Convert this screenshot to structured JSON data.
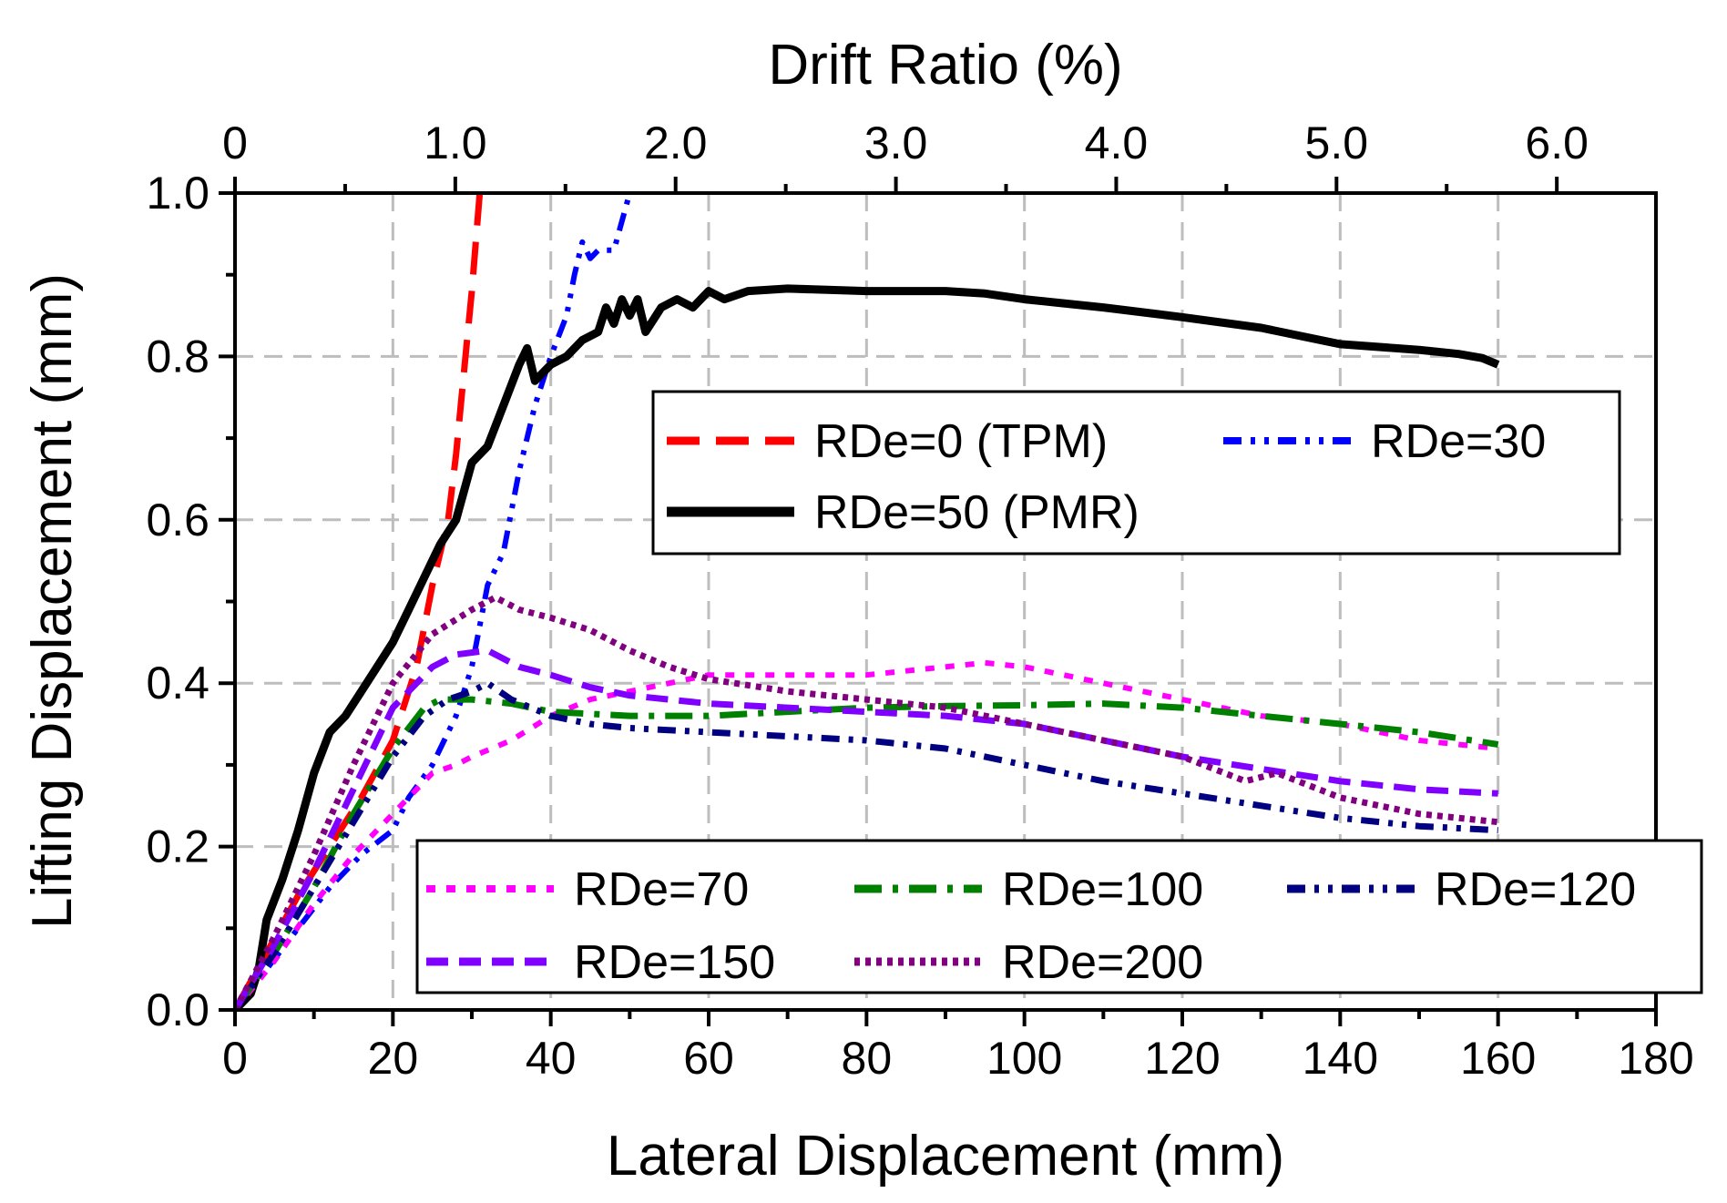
{
  "chart_data": {
    "type": "line",
    "xlabel": "Lateral Displacement (mm)",
    "ylabel": "Lifting Displacement (mm)",
    "x2label": "Drift Ratio (%)",
    "xlim": [
      0,
      180
    ],
    "ylim": [
      0,
      1.0
    ],
    "x2lim": [
      0,
      6.45
    ],
    "xticks": [
      0,
      20,
      40,
      60,
      80,
      100,
      120,
      140,
      160,
      180
    ],
    "xtick_labels": [
      "0",
      "20",
      "40",
      "60",
      "80",
      "100",
      "120",
      "140",
      "160",
      "180"
    ],
    "yticks": [
      0,
      0.2,
      0.4,
      0.6,
      0.8,
      1.0
    ],
    "ytick_labels": [
      "0.0",
      "0.2",
      "0.4",
      "0.6",
      "0.8",
      "1.0"
    ],
    "x2ticks": [
      0,
      1,
      2,
      3,
      4,
      5,
      6
    ],
    "x2tick_labels": [
      "0",
      "1.0",
      "2.0",
      "3.0",
      "4.0",
      "5.0",
      "6.0"
    ],
    "grid": true,
    "series": [
      {
        "name": "RDe=0 (TPM)",
        "color": "#ff0000",
        "dash": "long-dash",
        "width": 7,
        "points": [
          [
            0,
            0
          ],
          [
            4,
            0.07
          ],
          [
            8,
            0.14
          ],
          [
            12,
            0.2
          ],
          [
            16,
            0.26
          ],
          [
            20,
            0.33
          ],
          [
            23,
            0.42
          ],
          [
            25,
            0.52
          ],
          [
            27,
            0.6
          ],
          [
            28,
            0.68
          ],
          [
            29,
            0.78
          ],
          [
            30,
            0.88
          ],
          [
            31,
            1.0
          ]
        ]
      },
      {
        "name": "RDe=30",
        "color": "#0000ff",
        "dash": "dash-dot-dot",
        "width": 6,
        "points": [
          [
            0,
            0
          ],
          [
            4,
            0.05
          ],
          [
            8,
            0.1
          ],
          [
            12,
            0.15
          ],
          [
            16,
            0.19
          ],
          [
            20,
            0.22
          ],
          [
            22,
            0.26
          ],
          [
            25,
            0.3
          ],
          [
            28,
            0.36
          ],
          [
            30,
            0.42
          ],
          [
            32,
            0.52
          ],
          [
            34,
            0.56
          ],
          [
            36,
            0.66
          ],
          [
            38,
            0.74
          ],
          [
            40,
            0.8
          ],
          [
            42,
            0.85
          ],
          [
            43,
            0.9
          ],
          [
            44,
            0.94
          ],
          [
            45,
            0.92
          ],
          [
            46,
            0.93
          ],
          [
            48,
            0.93
          ],
          [
            50,
            1.0
          ]
        ]
      },
      {
        "name": "RDe=50 (PMR)",
        "color": "#000000",
        "dash": "solid",
        "width": 9,
        "points": [
          [
            0,
            0
          ],
          [
            2,
            0.02
          ],
          [
            3,
            0.05
          ],
          [
            4,
            0.11
          ],
          [
            6,
            0.16
          ],
          [
            8,
            0.22
          ],
          [
            10,
            0.29
          ],
          [
            12,
            0.34
          ],
          [
            14,
            0.36
          ],
          [
            16,
            0.39
          ],
          [
            18,
            0.42
          ],
          [
            20,
            0.45
          ],
          [
            22,
            0.49
          ],
          [
            24,
            0.53
          ],
          [
            26,
            0.57
          ],
          [
            28,
            0.6
          ],
          [
            30,
            0.67
          ],
          [
            32,
            0.69
          ],
          [
            34,
            0.74
          ],
          [
            36,
            0.79
          ],
          [
            37,
            0.81
          ],
          [
            38,
            0.77
          ],
          [
            40,
            0.79
          ],
          [
            42,
            0.8
          ],
          [
            44,
            0.82
          ],
          [
            46,
            0.83
          ],
          [
            47,
            0.86
          ],
          [
            48,
            0.84
          ],
          [
            49,
            0.87
          ],
          [
            50,
            0.85
          ],
          [
            51,
            0.87
          ],
          [
            52,
            0.83
          ],
          [
            54,
            0.86
          ],
          [
            56,
            0.87
          ],
          [
            58,
            0.86
          ],
          [
            60,
            0.88
          ],
          [
            62,
            0.87
          ],
          [
            65,
            0.88
          ],
          [
            70,
            0.883
          ],
          [
            80,
            0.88
          ],
          [
            90,
            0.88
          ],
          [
            95,
            0.877
          ],
          [
            100,
            0.87
          ],
          [
            105,
            0.865
          ],
          [
            110,
            0.86
          ],
          [
            120,
            0.848
          ],
          [
            130,
            0.835
          ],
          [
            140,
            0.815
          ],
          [
            150,
            0.808
          ],
          [
            155,
            0.803
          ],
          [
            158,
            0.798
          ],
          [
            160,
            0.79
          ]
        ]
      },
      {
        "name": "RDe=70",
        "color": "#ff00ff",
        "dash": "short-dot",
        "width": 6,
        "points": [
          [
            0,
            0
          ],
          [
            5,
            0.06
          ],
          [
            10,
            0.13
          ],
          [
            15,
            0.19
          ],
          [
            20,
            0.24
          ],
          [
            25,
            0.29
          ],
          [
            28,
            0.3
          ],
          [
            30,
            0.31
          ],
          [
            35,
            0.33
          ],
          [
            40,
            0.36
          ],
          [
            45,
            0.38
          ],
          [
            50,
            0.39
          ],
          [
            55,
            0.4
          ],
          [
            60,
            0.41
          ],
          [
            70,
            0.41
          ],
          [
            80,
            0.41
          ],
          [
            90,
            0.42
          ],
          [
            95,
            0.425
          ],
          [
            100,
            0.42
          ],
          [
            110,
            0.4
          ],
          [
            120,
            0.38
          ],
          [
            130,
            0.36
          ],
          [
            140,
            0.35
          ],
          [
            150,
            0.33
          ],
          [
            160,
            0.32
          ]
        ]
      },
      {
        "name": "RDe=100",
        "color": "#008000",
        "dash": "long-dash-dot",
        "width": 7,
        "points": [
          [
            0,
            0
          ],
          [
            5,
            0.07
          ],
          [
            10,
            0.15
          ],
          [
            15,
            0.24
          ],
          [
            20,
            0.32
          ],
          [
            24,
            0.37
          ],
          [
            26,
            0.38
          ],
          [
            30,
            0.38
          ],
          [
            35,
            0.375
          ],
          [
            40,
            0.365
          ],
          [
            50,
            0.36
          ],
          [
            60,
            0.36
          ],
          [
            70,
            0.365
          ],
          [
            80,
            0.37
          ],
          [
            90,
            0.372
          ],
          [
            100,
            0.373
          ],
          [
            110,
            0.375
          ],
          [
            120,
            0.37
          ],
          [
            130,
            0.36
          ],
          [
            140,
            0.35
          ],
          [
            150,
            0.34
          ],
          [
            160,
            0.325
          ]
        ]
      },
      {
        "name": "RDe=120",
        "color": "#000080",
        "dash": "dash-dot-dot",
        "width": 7,
        "points": [
          [
            0,
            0
          ],
          [
            5,
            0.07
          ],
          [
            10,
            0.15
          ],
          [
            15,
            0.23
          ],
          [
            20,
            0.31
          ],
          [
            24,
            0.36
          ],
          [
            27,
            0.38
          ],
          [
            30,
            0.39
          ],
          [
            32,
            0.4
          ],
          [
            35,
            0.38
          ],
          [
            40,
            0.36
          ],
          [
            45,
            0.35
          ],
          [
            50,
            0.345
          ],
          [
            60,
            0.34
          ],
          [
            70,
            0.335
          ],
          [
            80,
            0.33
          ],
          [
            90,
            0.32
          ],
          [
            100,
            0.3
          ],
          [
            110,
            0.28
          ],
          [
            120,
            0.265
          ],
          [
            130,
            0.25
          ],
          [
            140,
            0.235
          ],
          [
            150,
            0.225
          ],
          [
            160,
            0.22
          ]
        ]
      },
      {
        "name": "RDe=150",
        "color": "#8000ff",
        "dash": "medium-dash",
        "width": 7,
        "points": [
          [
            0,
            0
          ],
          [
            5,
            0.08
          ],
          [
            10,
            0.17
          ],
          [
            15,
            0.27
          ],
          [
            20,
            0.37
          ],
          [
            25,
            0.42
          ],
          [
            28,
            0.435
          ],
          [
            32,
            0.44
          ],
          [
            36,
            0.42
          ],
          [
            40,
            0.41
          ],
          [
            45,
            0.395
          ],
          [
            50,
            0.385
          ],
          [
            60,
            0.375
          ],
          [
            70,
            0.37
          ],
          [
            80,
            0.365
          ],
          [
            90,
            0.36
          ],
          [
            100,
            0.35
          ],
          [
            110,
            0.33
          ],
          [
            120,
            0.31
          ],
          [
            130,
            0.295
          ],
          [
            140,
            0.28
          ],
          [
            150,
            0.27
          ],
          [
            160,
            0.265
          ]
        ]
      },
      {
        "name": "RDe=200",
        "color": "#800080",
        "dash": "dotted",
        "width": 7,
        "points": [
          [
            0,
            0
          ],
          [
            5,
            0.09
          ],
          [
            10,
            0.19
          ],
          [
            15,
            0.3
          ],
          [
            20,
            0.4
          ],
          [
            25,
            0.46
          ],
          [
            30,
            0.49
          ],
          [
            33,
            0.505
          ],
          [
            36,
            0.49
          ],
          [
            40,
            0.48
          ],
          [
            45,
            0.465
          ],
          [
            50,
            0.44
          ],
          [
            55,
            0.42
          ],
          [
            60,
            0.405
          ],
          [
            70,
            0.39
          ],
          [
            80,
            0.38
          ],
          [
            90,
            0.37
          ],
          [
            100,
            0.35
          ],
          [
            110,
            0.33
          ],
          [
            120,
            0.31
          ],
          [
            128,
            0.28
          ],
          [
            132,
            0.29
          ],
          [
            140,
            0.26
          ],
          [
            150,
            0.24
          ],
          [
            160,
            0.23
          ]
        ]
      }
    ],
    "legends": [
      {
        "placement": "upper-right",
        "entries": [
          "RDe=0 (TPM)",
          "RDe=30",
          "RDe=50 (PMR)"
        ]
      },
      {
        "placement": "lower-right",
        "entries": [
          "RDe=70",
          "RDe=100",
          "RDe=120",
          "RDe=150",
          "RDe=200"
        ]
      }
    ]
  }
}
